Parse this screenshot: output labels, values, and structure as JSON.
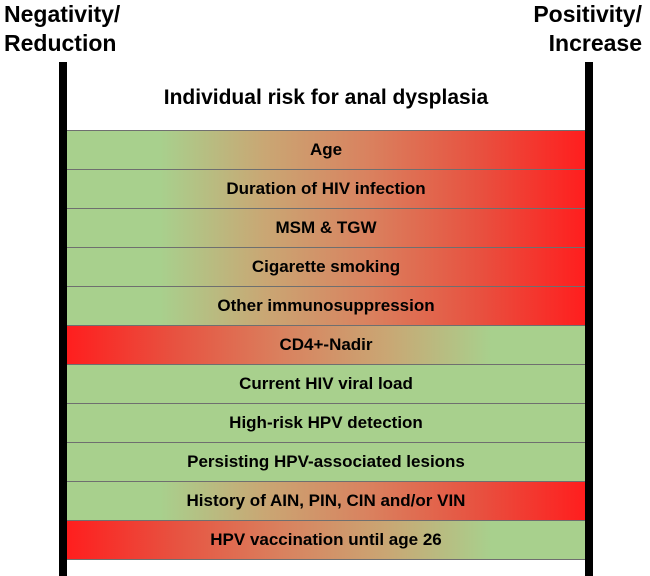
{
  "labels": {
    "left": [
      "Negativity/",
      "Reduction"
    ],
    "right": [
      "Positivity/",
      "Increase"
    ]
  },
  "title": "Individual risk for anal dysplasia",
  "factors": [
    {
      "label": "Age",
      "direction": "increase"
    },
    {
      "label": "Duration of HIV infection",
      "direction": "increase"
    },
    {
      "label": "MSM & TGW",
      "direction": "increase"
    },
    {
      "label": "Cigarette smoking",
      "direction": "increase"
    },
    {
      "label": "Other immunosuppression",
      "direction": "increase"
    },
    {
      "label": "CD4+-Nadir",
      "direction": "decrease"
    },
    {
      "label": "Current HIV viral load",
      "direction": "none"
    },
    {
      "label": "High-risk HPV detection",
      "direction": "none"
    },
    {
      "label": "Persisting HPV-associated lesions",
      "direction": "none"
    },
    {
      "label": "History of AIN, PIN, CIN and/or VIN",
      "direction": "increase"
    },
    {
      "label": "HPV vaccination until age 26",
      "direction": "decrease"
    }
  ],
  "colors": {
    "green": "#a8d08d",
    "red": "#ff1e1e",
    "axis": "#000000"
  }
}
